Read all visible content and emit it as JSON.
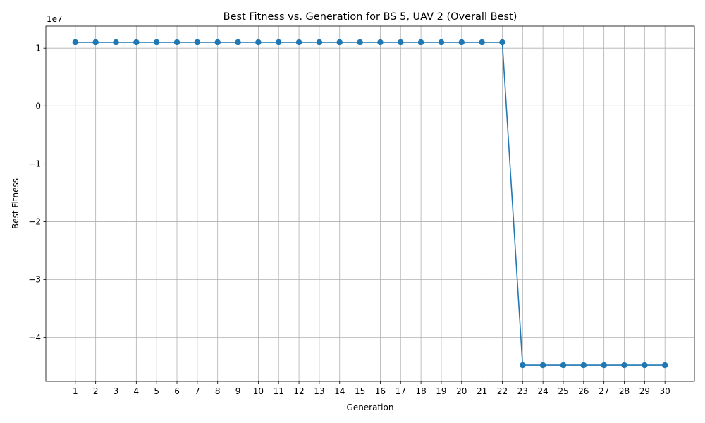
{
  "chart_data": {
    "type": "line",
    "title": "Best Fitness vs. Generation for BS 5, UAV 2 (Overall Best)",
    "xlabel": "Generation",
    "ylabel": "Best Fitness",
    "y_offset_text": "1e7",
    "y_scale": 10000000,
    "x": [
      1,
      2,
      3,
      4,
      5,
      6,
      7,
      8,
      9,
      10,
      11,
      12,
      13,
      14,
      15,
      16,
      17,
      18,
      19,
      20,
      21,
      22,
      23,
      24,
      25,
      26,
      27,
      28,
      29,
      30
    ],
    "x_tick_labels": [
      "1",
      "2",
      "3",
      "4",
      "5",
      "6",
      "7",
      "8",
      "9",
      "10",
      "11",
      "12",
      "13",
      "14",
      "15",
      "16",
      "17",
      "18",
      "19",
      "20",
      "21",
      "22",
      "23",
      "24",
      "25",
      "26",
      "27",
      "28",
      "29",
      "30"
    ],
    "series": [
      {
        "values": [
          11000000,
          11000000,
          11000000,
          11000000,
          11000000,
          11000000,
          11000000,
          11000000,
          11000000,
          11000000,
          11000000,
          11000000,
          11000000,
          11000000,
          11000000,
          11000000,
          11000000,
          11000000,
          11000000,
          11000000,
          11000000,
          11000000,
          -44800000,
          -44800000,
          -44800000,
          -44800000,
          -44800000,
          -44800000,
          -44800000,
          -44800000
        ],
        "color": "#1f77b4",
        "marker": "circle"
      }
    ],
    "y_ticks": [
      1,
      0,
      -1,
      -2,
      -3,
      -4
    ],
    "y_tick_labels": [
      "1",
      "0",
      "−1",
      "−2",
      "−3",
      "−4"
    ],
    "xlim": [
      -0.45,
      31.45
    ],
    "ylim": [
      -47600000,
      13800000
    ],
    "grid": true,
    "legend": "none"
  }
}
